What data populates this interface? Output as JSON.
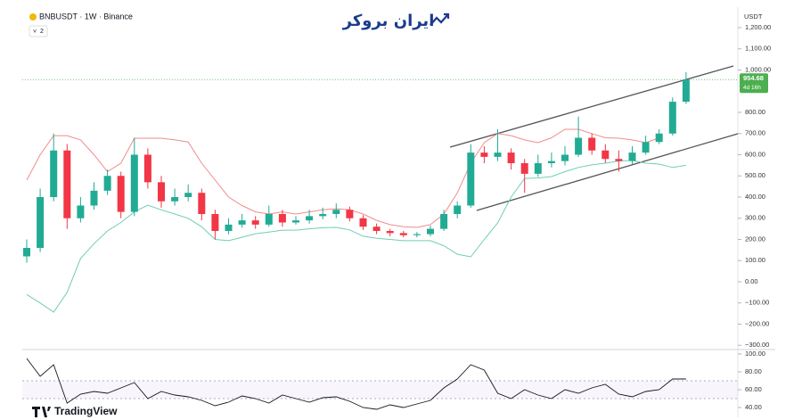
{
  "header": {
    "symbol": "BNBUSDT · 1W · Binance",
    "indicator_count": "2",
    "logo": "ایران بروکر",
    "currency": "USDT",
    "footer_brand": "TradingView"
  },
  "chart_data": [
    {
      "type": "candlestick",
      "open": [
        120,
        160,
        400,
        620,
        300,
        360,
        430,
        500,
        330,
        600,
        470,
        380,
        400,
        420,
        320,
        240,
        270,
        290,
        270,
        320,
        280,
        290,
        310,
        320,
        340,
        300,
        260,
        240,
        230,
        220,
        225,
        250,
        320,
        360,
        610,
        590,
        610,
        560,
        510,
        560,
        570,
        600,
        680,
        620,
        580,
        570,
        610,
        660,
        700,
        850
      ],
      "high": [
        200,
        440,
        700,
        650,
        400,
        470,
        530,
        520,
        680,
        630,
        500,
        440,
        460,
        440,
        340,
        300,
        320,
        310,
        360,
        340,
        310,
        340,
        350,
        370,
        355,
        315,
        275,
        250,
        240,
        235,
        265,
        340,
        380,
        650,
        640,
        720,
        630,
        580,
        600,
        610,
        640,
        780,
        700,
        650,
        620,
        640,
        690,
        720,
        870,
        990
      ],
      "low": [
        90,
        140,
        380,
        250,
        280,
        340,
        410,
        300,
        310,
        440,
        350,
        360,
        380,
        290,
        200,
        225,
        255,
        250,
        260,
        260,
        270,
        275,
        295,
        300,
        285,
        245,
        225,
        215,
        210,
        210,
        215,
        240,
        300,
        350,
        560,
        570,
        530,
        420,
        495,
        540,
        550,
        590,
        600,
        560,
        520,
        555,
        600,
        650,
        690,
        840
      ],
      "close": [
        160,
        400,
        620,
        300,
        360,
        430,
        500,
        330,
        600,
        470,
        380,
        400,
        420,
        320,
        240,
        270,
        290,
        270,
        320,
        280,
        290,
        310,
        320,
        340,
        300,
        260,
        240,
        230,
        220,
        225,
        250,
        320,
        360,
        610,
        590,
        610,
        560,
        510,
        560,
        570,
        600,
        680,
        620,
        580,
        570,
        610,
        660,
        700,
        850,
        955
      ],
      "up_color": "#22ab94",
      "down_color": "#f23645",
      "overlays": [
        {
          "color": "#f28b8b",
          "values": [
            480,
            600,
            690,
            690,
            670,
            600,
            520,
            560,
            678,
            678,
            678,
            670,
            660,
            560,
            480,
            400,
            360,
            330,
            320,
            330,
            320,
            330,
            340,
            345,
            340,
            320,
            290,
            270,
            260,
            257,
            270,
            320,
            420,
            560,
            657,
            700,
            690,
            670,
            657,
            680,
            720,
            720,
            700,
            680,
            678,
            670,
            657,
            680,
            null,
            null
          ]
        },
        {
          "color": "#6fcfb0",
          "values": [
            -60,
            -100,
            -143,
            -50,
            110,
            180,
            240,
            280,
            330,
            362,
            340,
            320,
            300,
            260,
            200,
            194,
            210,
            227,
            235,
            244,
            244,
            250,
            255,
            257,
            245,
            215,
            205,
            200,
            194,
            194,
            194,
            170,
            130,
            118,
            200,
            278,
            400,
            488,
            490,
            497,
            520,
            540,
            552,
            560,
            570,
            573,
            560,
            556,
            540,
            550
          ]
        }
      ],
      "ylim": [
        -320,
        1280
      ],
      "yticks": [
        {
          "value": 1200,
          "label": "1,200.00"
        },
        {
          "value": 1100,
          "label": "1,100.00"
        },
        {
          "value": 1000,
          "label": "1,000.00"
        },
        {
          "value": 800,
          "label": "800.00"
        },
        {
          "value": 700,
          "label": "700.00"
        },
        {
          "value": 600,
          "label": "600.00"
        },
        {
          "value": 500,
          "label": "500.00"
        },
        {
          "value": 400,
          "label": "400.00"
        },
        {
          "value": 300,
          "label": "300.00"
        },
        {
          "value": 200,
          "label": "200.00"
        },
        {
          "value": 100,
          "label": "100.00"
        },
        {
          "value": 0,
          "label": "0.00"
        },
        {
          "value": -100,
          "label": "−100.00"
        },
        {
          "value": -200,
          "label": "−200.00"
        },
        {
          "value": -300,
          "label": "−300.00"
        }
      ],
      "last_price": 954.68,
      "countdown": "4d 16h",
      "last_price_color": "#4caf50"
    },
    {
      "type": "line",
      "values": [
        95,
        75,
        88,
        45,
        55,
        58,
        56,
        62,
        68,
        50,
        58,
        54,
        52,
        48,
        42,
        46,
        53,
        50,
        45,
        54,
        50,
        46,
        51,
        52,
        47,
        40,
        38,
        43,
        40,
        44,
        48,
        62,
        72,
        88,
        82,
        56,
        50,
        60,
        54,
        50,
        60,
        56,
        62,
        66,
        55,
        52,
        58,
        60,
        72,
        72
      ],
      "color": "#131722",
      "levels": [
        70,
        50
      ],
      "ylim": [
        29,
        103
      ],
      "yticks": [
        {
          "value": 100,
          "label": "100.00"
        },
        {
          "value": 80,
          "label": "80.00"
        },
        {
          "value": 60,
          "label": "60.00"
        },
        {
          "value": 40,
          "label": "40.00"
        }
      ]
    }
  ]
}
